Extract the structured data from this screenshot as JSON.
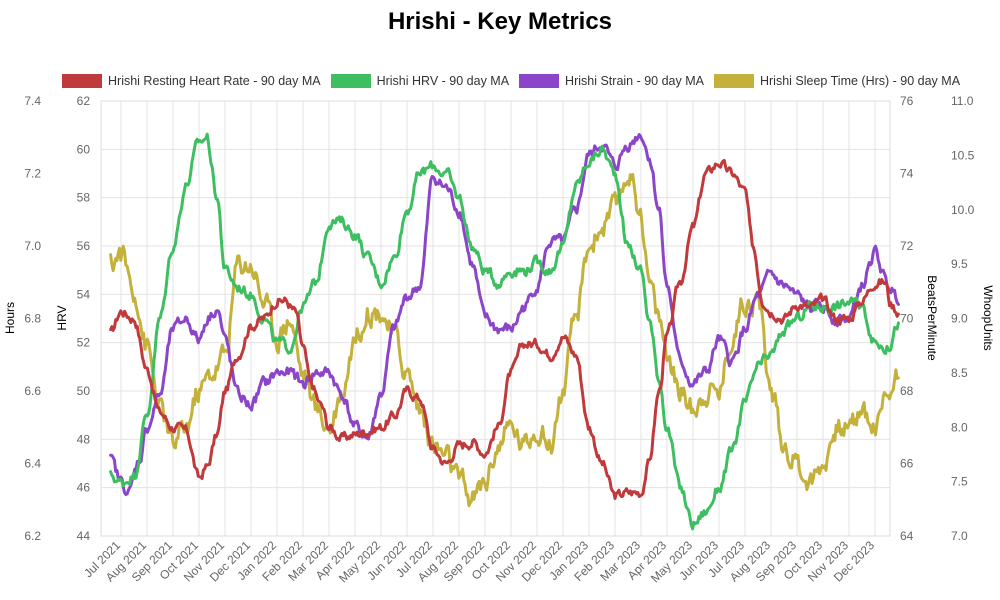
{
  "chart_data": {
    "type": "line",
    "title": "Hrishi - Key Metrics",
    "x_categories": [
      "Jul 2021",
      "Aug 2021",
      "Sep 2021",
      "Oct 2021",
      "Nov 2021",
      "Dec 2021",
      "Jan 2022",
      "Feb 2022",
      "Mar 2022",
      "Apr 2022",
      "May 2022",
      "Jun 2022",
      "Jul 2022",
      "Aug 2022",
      "Sep 2022",
      "Oct 2022",
      "Nov 2022",
      "Dec 2022",
      "Jan 2023",
      "Feb 2023",
      "Mar 2023",
      "Apr 2023",
      "May 2023",
      "Jun 2023",
      "Jul 2023",
      "Aug 2023",
      "Sep 2023",
      "Oct 2023",
      "Nov 2023",
      "Dec 2023"
    ],
    "axes": {
      "hours": {
        "label": "Hours",
        "min": 6.2,
        "max": 7.4,
        "ticks": [
          "6.2",
          "6.4",
          "6.6",
          "6.8",
          "7.0",
          "7.2",
          "7.4"
        ]
      },
      "hrv": {
        "label": "HRV",
        "min": 44,
        "max": 62,
        "ticks": [
          "44",
          "46",
          "48",
          "50",
          "52",
          "54",
          "56",
          "58",
          "60",
          "62"
        ]
      },
      "bpm": {
        "label": "BeatsPerMinute",
        "min": 64,
        "max": 76,
        "ticks": [
          "64",
          "66",
          "68",
          "70",
          "72",
          "74",
          "76"
        ]
      },
      "whoop": {
        "label": "WhoopUnits",
        "min": 7.0,
        "max": 11.0,
        "ticks": [
          "7.0",
          "7.5",
          "8.0",
          "8.5",
          "9.0",
          "9.5",
          "10.0",
          "10.5",
          "11.0"
        ]
      }
    },
    "grid": true,
    "legend_position": "top",
    "series": [
      {
        "name": "Hrishi Resting Heart Rate - 90 day MA",
        "color": "#c0393b",
        "axis": "bpm",
        "points": [
          [
            -0.4,
            69.6
          ],
          [
            0,
            70.2
          ],
          [
            0.5,
            70.0
          ],
          [
            1,
            68.6
          ],
          [
            1.5,
            67.4
          ],
          [
            2,
            67.0
          ],
          [
            2.5,
            66.9
          ],
          [
            3,
            65.6
          ],
          [
            3.3,
            65.9
          ],
          [
            3.7,
            66.8
          ],
          [
            4,
            68.0
          ],
          [
            4.5,
            69.0
          ],
          [
            5,
            69.8
          ],
          [
            5.5,
            70.0
          ],
          [
            6,
            70.5
          ],
          [
            6.3,
            70.5
          ],
          [
            6.7,
            70.2
          ],
          [
            7,
            69.2
          ],
          [
            7.3,
            68.2
          ],
          [
            7.7,
            67.6
          ],
          [
            8,
            67.0
          ],
          [
            8.5,
            66.7
          ],
          [
            9,
            66.8
          ],
          [
            9.5,
            66.9
          ],
          [
            10,
            67.0
          ],
          [
            10.5,
            67.3
          ],
          [
            11,
            68.0
          ],
          [
            11.5,
            67.8
          ],
          [
            12,
            66.4
          ],
          [
            12.5,
            66.0
          ],
          [
            13,
            66.5
          ],
          [
            13.5,
            66.6
          ],
          [
            14,
            66.3
          ],
          [
            14.5,
            67.0
          ],
          [
            15,
            68.5
          ],
          [
            15.5,
            69.3
          ],
          [
            16,
            69.3
          ],
          [
            16.5,
            69.0
          ],
          [
            17,
            69.5
          ],
          [
            17.5,
            69.0
          ],
          [
            18,
            67.0
          ],
          [
            18.5,
            66.0
          ],
          [
            19,
            65.1
          ],
          [
            19.5,
            65.2
          ],
          [
            20,
            65.2
          ],
          [
            20.3,
            66.0
          ],
          [
            20.7,
            68.0
          ],
          [
            21,
            69.5
          ],
          [
            21.5,
            71.0
          ],
          [
            22,
            72.5
          ],
          [
            22.5,
            74.0
          ],
          [
            23,
            74.3
          ],
          [
            23.5,
            74.0
          ],
          [
            24,
            73.5
          ],
          [
            24.3,
            72.0
          ],
          [
            24.7,
            70.5
          ],
          [
            25,
            70.2
          ],
          [
            25.5,
            70.0
          ],
          [
            26,
            70.4
          ],
          [
            26.5,
            70.3
          ],
          [
            27,
            70.5
          ],
          [
            27.5,
            70.0
          ],
          [
            28,
            70.0
          ],
          [
            28.5,
            70.5
          ],
          [
            29,
            71.0
          ],
          [
            29.4,
            71.0
          ],
          [
            29.6,
            70.4
          ],
          [
            29.9,
            70.2
          ]
        ]
      },
      {
        "name": "Hrishi HRV - 90 day MA",
        "color": "#3dbe60",
        "axis": "hrv",
        "points": [
          [
            -0.4,
            46.5
          ],
          [
            0,
            46.2
          ],
          [
            0.5,
            46.5
          ],
          [
            1,
            49.0
          ],
          [
            1.5,
            53.0
          ],
          [
            2,
            56.0
          ],
          [
            2.5,
            58.5
          ],
          [
            3,
            60.3
          ],
          [
            3.3,
            60.5
          ],
          [
            3.7,
            58.0
          ],
          [
            4,
            55.0
          ],
          [
            4.5,
            54.3
          ],
          [
            5,
            54.0
          ],
          [
            5.5,
            53.0
          ],
          [
            6,
            52.0
          ],
          [
            6.5,
            51.8
          ],
          [
            7,
            53.5
          ],
          [
            7.5,
            54.5
          ],
          [
            8,
            57.0
          ],
          [
            8.5,
            57.0
          ],
          [
            9,
            56.5
          ],
          [
            9.5,
            55.5
          ],
          [
            10,
            54.5
          ],
          [
            10.5,
            55.5
          ],
          [
            11,
            57.5
          ],
          [
            11.5,
            59.0
          ],
          [
            12,
            59.3
          ],
          [
            12.5,
            59.0
          ],
          [
            13,
            58.0
          ],
          [
            13.5,
            56.0
          ],
          [
            14,
            55.0
          ],
          [
            14.5,
            54.5
          ],
          [
            15,
            55.0
          ],
          [
            15.5,
            55.0
          ],
          [
            16,
            55.3
          ],
          [
            16.5,
            55.0
          ],
          [
            17,
            56.0
          ],
          [
            17.5,
            58.5
          ],
          [
            18,
            59.5
          ],
          [
            18.5,
            60.0
          ],
          [
            19,
            59.0
          ],
          [
            19.5,
            56.0
          ],
          [
            20,
            55.0
          ],
          [
            20.3,
            53.0
          ],
          [
            20.7,
            50.5
          ],
          [
            21,
            48.5
          ],
          [
            21.5,
            46.0
          ],
          [
            22,
            44.5
          ],
          [
            22.5,
            45.0
          ],
          [
            23,
            46.0
          ],
          [
            23.5,
            47.5
          ],
          [
            24,
            49.5
          ],
          [
            24.5,
            51.0
          ],
          [
            25,
            51.5
          ],
          [
            25.5,
            52.5
          ],
          [
            26,
            53.0
          ],
          [
            26.5,
            53.5
          ],
          [
            27,
            53.5
          ],
          [
            27.5,
            53.5
          ],
          [
            28,
            53.7
          ],
          [
            28.5,
            53.5
          ],
          [
            29,
            52.0
          ],
          [
            29.5,
            51.8
          ],
          [
            29.9,
            52.8
          ]
        ]
      },
      {
        "name": "Hrishi Strain - 90 day MA",
        "color": "#8b45c8",
        "axis": "whoop",
        "points": [
          [
            -0.4,
            7.7
          ],
          [
            0,
            7.5
          ],
          [
            0.3,
            7.4
          ],
          [
            0.7,
            7.7
          ],
          [
            1,
            8.0
          ],
          [
            1.5,
            8.3
          ],
          [
            2,
            8.9
          ],
          [
            2.5,
            9.0
          ],
          [
            3,
            8.8
          ],
          [
            3.3,
            9.0
          ],
          [
            3.7,
            9.1
          ],
          [
            4,
            8.8
          ],
          [
            4.5,
            8.3
          ],
          [
            5,
            8.2
          ],
          [
            5.5,
            8.4
          ],
          [
            6,
            8.5
          ],
          [
            6.5,
            8.5
          ],
          [
            7,
            8.4
          ],
          [
            7.5,
            8.5
          ],
          [
            8,
            8.5
          ],
          [
            8.5,
            8.3
          ],
          [
            9,
            8.0
          ],
          [
            9.5,
            7.9
          ],
          [
            10,
            8.3
          ],
          [
            10.5,
            8.9
          ],
          [
            11,
            9.2
          ],
          [
            11.5,
            9.3
          ],
          [
            12,
            10.3
          ],
          [
            12.5,
            10.2
          ],
          [
            13,
            10.0
          ],
          [
            13.5,
            9.5
          ],
          [
            14,
            9.0
          ],
          [
            14.5,
            8.9
          ],
          [
            15,
            8.9
          ],
          [
            15.5,
            9.1
          ],
          [
            16,
            9.3
          ],
          [
            16.5,
            9.7
          ],
          [
            17,
            9.7
          ],
          [
            17.5,
            10.0
          ],
          [
            18,
            10.5
          ],
          [
            18.5,
            10.6
          ],
          [
            19,
            10.4
          ],
          [
            19.5,
            10.6
          ],
          [
            20,
            10.7
          ],
          [
            20.3,
            10.5
          ],
          [
            20.7,
            10.0
          ],
          [
            21,
            9.3
          ],
          [
            21.5,
            8.6
          ],
          [
            22,
            8.4
          ],
          [
            22.5,
            8.5
          ],
          [
            23,
            8.8
          ],
          [
            23.5,
            8.6
          ],
          [
            24,
            8.9
          ],
          [
            24.5,
            9.2
          ],
          [
            25,
            9.4
          ],
          [
            25.5,
            9.3
          ],
          [
            26,
            9.2
          ],
          [
            26.5,
            9.1
          ],
          [
            27,
            9.1
          ],
          [
            27.5,
            9.0
          ],
          [
            28,
            9.0
          ],
          [
            28.5,
            9.3
          ],
          [
            29,
            9.6
          ],
          [
            29.5,
            9.3
          ],
          [
            29.9,
            9.2
          ]
        ]
      },
      {
        "name": "Hrishi Sleep Time (Hrs) - 90 day MA",
        "color": "#c4b13b",
        "axis": "hours",
        "points": [
          [
            -0.4,
            6.95
          ],
          [
            0,
            6.98
          ],
          [
            0.5,
            6.88
          ],
          [
            1,
            6.72
          ],
          [
            1.5,
            6.55
          ],
          [
            2,
            6.45
          ],
          [
            2.5,
            6.5
          ],
          [
            3,
            6.6
          ],
          [
            3.5,
            6.65
          ],
          [
            4,
            6.7
          ],
          [
            4.5,
            6.95
          ],
          [
            5,
            6.95
          ],
          [
            5.5,
            6.85
          ],
          [
            6,
            6.75
          ],
          [
            6.5,
            6.8
          ],
          [
            7,
            6.65
          ],
          [
            7.5,
            6.55
          ],
          [
            8,
            6.5
          ],
          [
            8.5,
            6.6
          ],
          [
            9,
            6.75
          ],
          [
            9.5,
            6.82
          ],
          [
            10,
            6.82
          ],
          [
            10.5,
            6.75
          ],
          [
            11,
            6.65
          ],
          [
            11.5,
            6.55
          ],
          [
            12,
            6.45
          ],
          [
            12.5,
            6.42
          ],
          [
            13,
            6.35
          ],
          [
            13.5,
            6.3
          ],
          [
            14,
            6.35
          ],
          [
            14.5,
            6.45
          ],
          [
            15,
            6.5
          ],
          [
            15.5,
            6.45
          ],
          [
            16,
            6.5
          ],
          [
            16.5,
            6.45
          ],
          [
            17,
            6.6
          ],
          [
            17.5,
            6.8
          ],
          [
            18,
            7.0
          ],
          [
            18.5,
            7.05
          ],
          [
            19,
            7.1
          ],
          [
            19.5,
            7.2
          ],
          [
            20,
            7.1
          ],
          [
            20.3,
            6.9
          ],
          [
            20.7,
            6.8
          ],
          [
            21,
            6.7
          ],
          [
            21.5,
            6.6
          ],
          [
            22,
            6.55
          ],
          [
            22.5,
            6.6
          ],
          [
            23,
            6.6
          ],
          [
            23.5,
            6.75
          ],
          [
            24,
            6.85
          ],
          [
            24.5,
            6.85
          ],
          [
            25,
            6.6
          ],
          [
            25.5,
            6.45
          ],
          [
            26,
            6.4
          ],
          [
            26.5,
            6.35
          ],
          [
            27,
            6.4
          ],
          [
            27.5,
            6.5
          ],
          [
            28,
            6.5
          ],
          [
            28.5,
            6.55
          ],
          [
            29,
            6.5
          ],
          [
            29.5,
            6.6
          ],
          [
            29.9,
            6.65
          ]
        ]
      }
    ]
  }
}
